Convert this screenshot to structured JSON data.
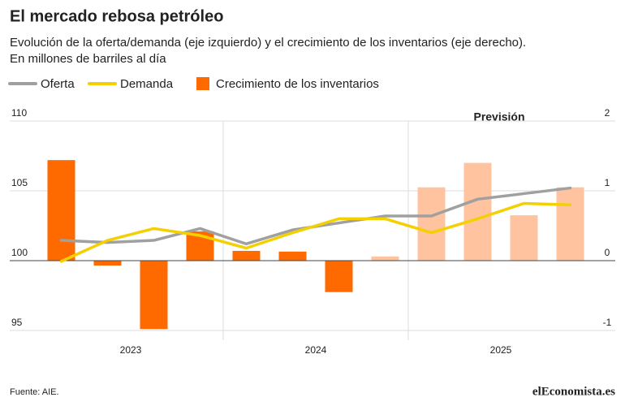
{
  "chart_data": {
    "type": "bar_line",
    "title": "El mercado rebosa petróleo",
    "subtitle": "Evolución de la oferta/demanda (eje izquierdo) y el crecimiento de los inventarios (eje derecho).",
    "subtitle2": "En millones de barriles al día",
    "annotation": "Previsión",
    "source": "Fuente: AIE.",
    "logo": "elEconomista.es",
    "categories": [
      null,
      null,
      null,
      null,
      null,
      null,
      null,
      null,
      null,
      null,
      null,
      null
    ],
    "x_groups": [
      "2023",
      "2024",
      "2025"
    ],
    "ylim": [
      95,
      110
    ],
    "yticks": [
      95,
      100,
      105,
      110
    ],
    "y2lim": [
      -1,
      2
    ],
    "y2ticks": [
      -1,
      0,
      1,
      2
    ],
    "grid": true,
    "series": [
      {
        "name": "Oferta",
        "type": "line",
        "color": "#a0a0a0",
        "values": [
          101.45,
          101.3,
          101.45,
          102.3,
          101.2,
          102.2,
          102.7,
          103.2,
          103.2,
          104.4,
          104.8,
          105.2
        ]
      },
      {
        "name": "Demanda",
        "type": "line",
        "color": "#f5d000",
        "values": [
          99.95,
          101.45,
          102.3,
          101.8,
          100.9,
          102.0,
          103.0,
          103.0,
          102.0,
          103.0,
          104.1,
          104.0
        ]
      },
      {
        "name": "Crecimiento de los inventarios",
        "type": "bar",
        "axis": "y2",
        "color": "#ff6a00",
        "colors": [
          "#ff6a00",
          "#ff6a00",
          "#ff6a00",
          "#ff6a00",
          "#ff6a00",
          "#ff6a00",
          "#ff6a00",
          "#ffc3a0",
          "#ffc3a0",
          "#ffc3a0",
          "#ffc3a0",
          "#ffc3a0"
        ],
        "values": [
          1.44,
          -0.07,
          -0.98,
          0.42,
          0.14,
          0.13,
          -0.45,
          0.06,
          1.05,
          1.4,
          0.65,
          1.05
        ]
      }
    ]
  }
}
